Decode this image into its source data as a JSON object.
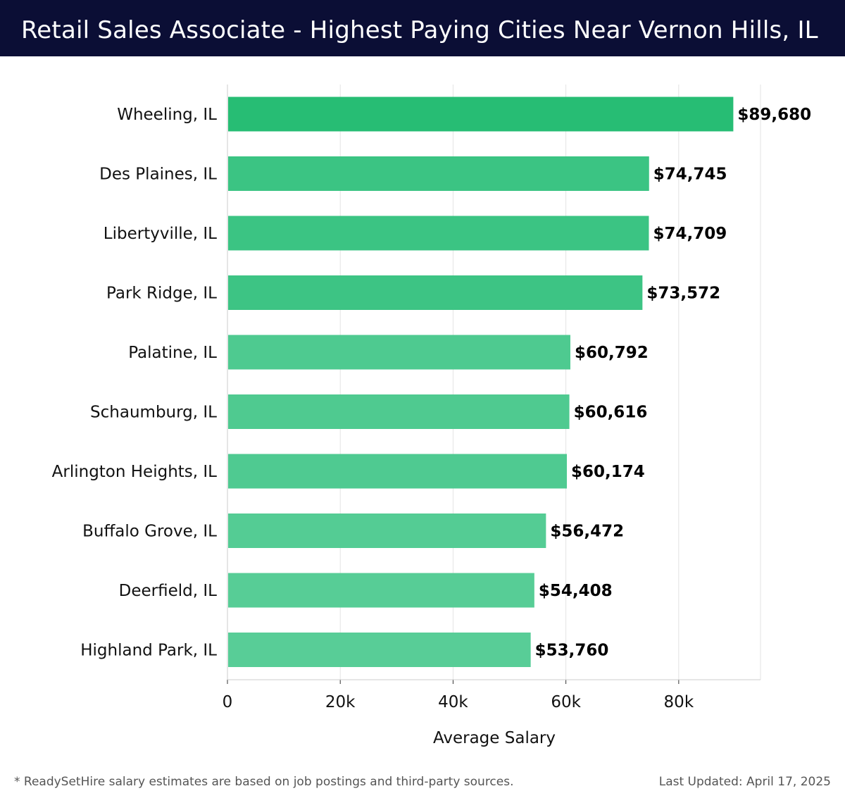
{
  "header": {
    "title": "Retail Sales Associate - Highest Paying Cities Near Vernon Hills, IL"
  },
  "chart_data": {
    "type": "bar",
    "orientation": "horizontal",
    "categories": [
      "Wheeling, IL",
      "Des Plaines, IL",
      "Libertyville, IL",
      "Park Ridge, IL",
      "Palatine, IL",
      "Schaumburg, IL",
      "Arlington Heights, IL",
      "Buffalo Grove, IL",
      "Deerfield, IL",
      "Highland Park, IL"
    ],
    "values": [
      89680,
      74745,
      74709,
      73572,
      60792,
      60616,
      60174,
      56472,
      54408,
      53760
    ],
    "value_labels": [
      "$89,680",
      "$74,745",
      "$74,709",
      "$73,572",
      "$60,792",
      "$60,616",
      "$60,174",
      "$56,472",
      "$54,408",
      "$53,760"
    ],
    "xlabel": "Average Salary",
    "ylabel": "",
    "xlim": [
      0,
      94500
    ],
    "xticks": [
      0,
      20000,
      40000,
      60000,
      80000
    ],
    "xtick_labels": [
      "0",
      "20k",
      "40k",
      "60k",
      "80k"
    ],
    "grid": "vertical",
    "colors": {
      "bar_max": "#27bd74",
      "bar_min": "#58cd97",
      "grid": "#e3e3e3",
      "axis": "#cccccc"
    }
  },
  "footer": {
    "note": "* ReadySetHire salary estimates are based on job postings and third-party sources.",
    "updated": "Last Updated: April 17, 2025"
  }
}
